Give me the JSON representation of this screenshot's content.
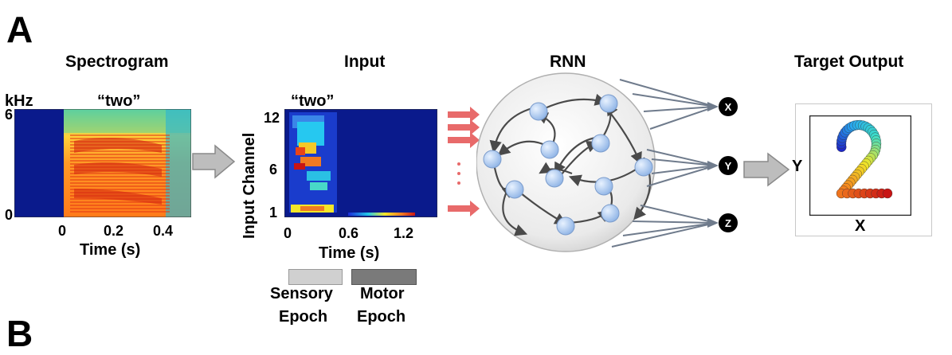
{
  "panel_letters": {
    "a": "A",
    "b": "B"
  },
  "spectrogram": {
    "title": "Spectrogram",
    "y_unit": "kHz",
    "word": "“two”",
    "y_ticks": [
      "6",
      "0"
    ],
    "x_ticks": [
      "0",
      "0.2",
      "0.4"
    ],
    "x_label": "Time (s)"
  },
  "input": {
    "title": "Input",
    "word": "“two”",
    "y_label": "Input Channel",
    "y_ticks": [
      "12",
      "6",
      "1"
    ],
    "x_ticks": [
      "0",
      "0.6",
      "1.2"
    ],
    "x_label": "Time (s)",
    "sensory_epoch": "Sensory Epoch",
    "motor_epoch": "Motor Epoch",
    "sensory_line1": "Sensory",
    "sensory_line2": "Epoch",
    "motor_line1": "Motor",
    "motor_line2": "Epoch"
  },
  "rnn": {
    "title": "RNN",
    "outputs": [
      "X",
      "Y",
      "Z"
    ]
  },
  "target": {
    "title": "Target Output",
    "y_label": "Y",
    "x_label": "X"
  },
  "colors": {
    "arrow_gray": "#b8b8b8",
    "input_arrow": "#e86a6a",
    "node": "#b9d3f2",
    "background_blue": "#0a1a8c"
  }
}
